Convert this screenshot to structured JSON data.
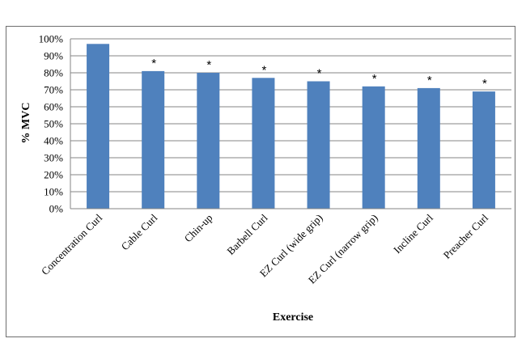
{
  "chart_data": {
    "type": "bar",
    "title": "",
    "xlabel": "Exercise",
    "ylabel": "% MVC",
    "categories": [
      "Concentration Curl",
      "Cable Curl",
      "Chin-up",
      "Barbell Curl",
      "EZ Curl (wide grip)",
      "EZ Curl (narrow grip)",
      "Incline Curl",
      "Preacher Curl"
    ],
    "values": [
      97,
      81,
      80,
      77,
      75,
      72,
      71,
      69
    ],
    "annotations": [
      "",
      "*",
      "*",
      "*",
      "*",
      "*",
      "*",
      "*"
    ],
    "ylim": [
      0,
      100
    ],
    "yticks": [
      "0%",
      "10%",
      "20%",
      "30%",
      "40%",
      "50%",
      "60%",
      "70%",
      "80%",
      "90%",
      "100%"
    ],
    "grid": true,
    "legend": "none",
    "bar_color": "#4f81bd",
    "grid_color": "#868686"
  }
}
